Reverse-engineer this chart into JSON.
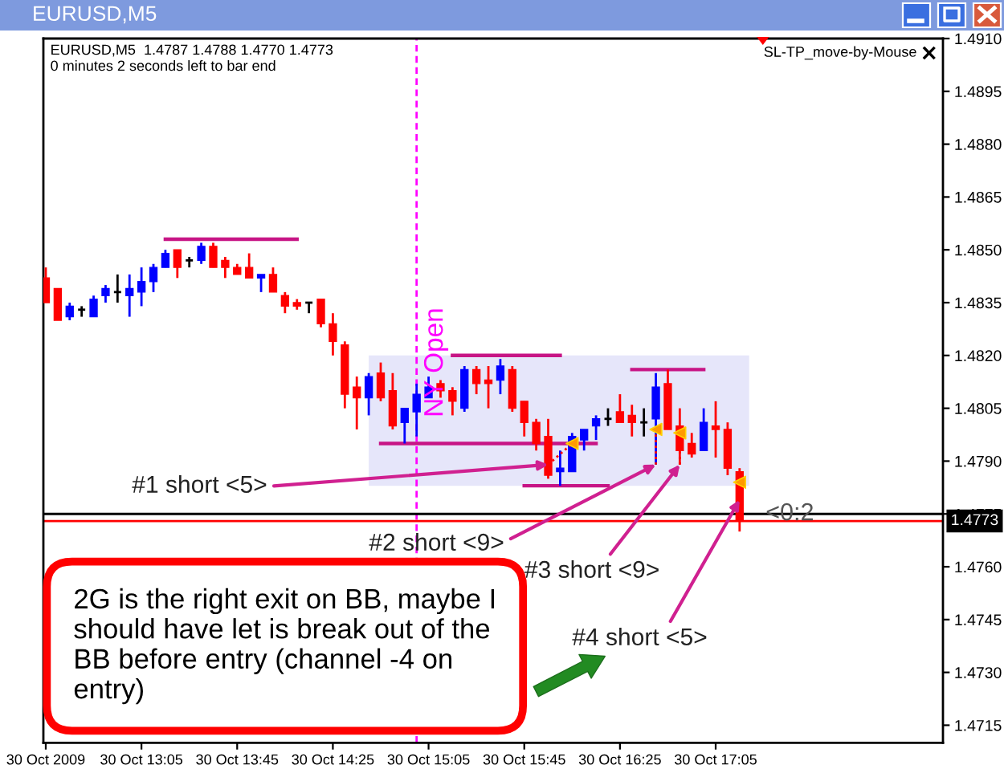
{
  "chart_data": {
    "type": "candlestick",
    "title": "EURUSD,M5",
    "subtitle": "EURUSD,M5  1.4787 1.4788 1.4770 1.4773",
    "x": [
      "2009-10-30T12:25",
      "2009-10-30T12:30",
      "2009-10-30T12:35",
      "2009-10-30T12:40",
      "2009-10-30T12:45",
      "2009-10-30T12:50",
      "2009-10-30T12:55",
      "2009-10-30T13:00",
      "2009-10-30T13:05",
      "2009-10-30T13:10",
      "2009-10-30T13:15",
      "2009-10-30T13:20",
      "2009-10-30T13:25",
      "2009-10-30T13:30",
      "2009-10-30T13:35",
      "2009-10-30T13:40",
      "2009-10-30T13:45",
      "2009-10-30T13:50",
      "2009-10-30T13:55",
      "2009-10-30T14:00",
      "2009-10-30T14:05",
      "2009-10-30T14:10",
      "2009-10-30T14:15",
      "2009-10-30T14:20",
      "2009-10-30T14:25",
      "2009-10-30T14:30",
      "2009-10-30T14:35",
      "2009-10-30T14:40",
      "2009-10-30T14:45",
      "2009-10-30T14:50",
      "2009-10-30T14:55",
      "2009-10-30T15:00",
      "2009-10-30T15:05",
      "2009-10-30T15:10",
      "2009-10-30T15:15",
      "2009-10-30T15:20",
      "2009-10-30T15:25",
      "2009-10-30T15:30",
      "2009-10-30T15:35",
      "2009-10-30T15:40",
      "2009-10-30T15:45",
      "2009-10-30T15:50",
      "2009-10-30T15:55",
      "2009-10-30T16:00",
      "2009-10-30T16:05",
      "2009-10-30T16:10",
      "2009-10-30T16:15",
      "2009-10-30T16:20",
      "2009-10-30T16:25",
      "2009-10-30T16:30",
      "2009-10-30T16:35",
      "2009-10-30T16:40",
      "2009-10-30T16:45",
      "2009-10-30T16:50",
      "2009-10-30T16:55",
      "2009-10-30T17:00",
      "2009-10-30T17:05",
      "2009-10-30T17:10",
      "2009-10-30T17:15"
    ],
    "ohlc": [
      [
        1.4842,
        1.4845,
        1.4835,
        1.4835
      ],
      [
        1.4839,
        1.4839,
        1.483,
        1.483
      ],
      [
        1.4831,
        1.4835,
        1.483,
        1.4834
      ],
      [
        1.4833,
        1.4834,
        1.4831,
        1.4833
      ],
      [
        1.4831,
        1.4837,
        1.4831,
        1.4836
      ],
      [
        1.4837,
        1.484,
        1.4835,
        1.4839
      ],
      [
        1.4838,
        1.4843,
        1.4835,
        1.4838
      ],
      [
        1.4837,
        1.4843,
        1.4831,
        1.4839
      ],
      [
        1.4838,
        1.4845,
        1.4834,
        1.4841
      ],
      [
        1.4841,
        1.4846,
        1.4838,
        1.4845
      ],
      [
        1.4845,
        1.485,
        1.4845,
        1.4849
      ],
      [
        1.485,
        1.485,
        1.4842,
        1.4845
      ],
      [
        1.4847,
        1.4848,
        1.4845,
        1.4847
      ],
      [
        1.4847,
        1.4852,
        1.4846,
        1.4851
      ],
      [
        1.4851,
        1.4852,
        1.4845,
        1.4845
      ],
      [
        1.4847,
        1.4848,
        1.4842,
        1.4845
      ],
      [
        1.4845,
        1.4846,
        1.4843,
        1.4843
      ],
      [
        1.4845,
        1.4849,
        1.4842,
        1.4842
      ],
      [
        1.4842,
        1.4843,
        1.4838,
        1.4843
      ],
      [
        1.4843,
        1.4845,
        1.4838,
        1.4838
      ],
      [
        1.4837,
        1.4838,
        1.4832,
        1.4834
      ],
      [
        1.4835,
        1.4836,
        1.4833,
        1.4834
      ],
      [
        1.4835,
        1.4835,
        1.4832,
        1.4835
      ],
      [
        1.4836,
        1.4836,
        1.4828,
        1.4829
      ],
      [
        1.4829,
        1.4832,
        1.482,
        1.4824
      ],
      [
        1.4823,
        1.4824,
        1.4805,
        1.4809
      ],
      [
        1.4811,
        1.4814,
        1.4799,
        1.4808
      ],
      [
        1.4808,
        1.4815,
        1.4803,
        1.4814
      ],
      [
        1.4815,
        1.4818,
        1.4807,
        1.4808
      ],
      [
        1.481,
        1.4815,
        1.4799,
        1.48
      ],
      [
        1.4801,
        1.4805,
        1.4795,
        1.4805
      ],
      [
        1.4804,
        1.4812,
        1.4797,
        1.4809
      ],
      [
        1.4808,
        1.4814,
        1.4808,
        1.4811
      ],
      [
        1.4812,
        1.4813,
        1.4808,
        1.481
      ],
      [
        1.481,
        1.4811,
        1.4803,
        1.4807
      ],
      [
        1.4805,
        1.4817,
        1.4804,
        1.4816
      ],
      [
        1.4816,
        1.4817,
        1.4809,
        1.4812
      ],
      [
        1.4813,
        1.4817,
        1.4805,
        1.4812
      ],
      [
        1.4813,
        1.4819,
        1.4809,
        1.4817
      ],
      [
        1.4816,
        1.4817,
        1.4804,
        1.4805
      ],
      [
        1.4807,
        1.4807,
        1.4797,
        1.4801
      ],
      [
        1.4801,
        1.4802,
        1.4793,
        1.4795
      ],
      [
        1.4797,
        1.4802,
        1.4785,
        1.4786
      ],
      [
        1.4787,
        1.4793,
        1.4783,
        1.4788
      ],
      [
        1.4787,
        1.4798,
        1.4787,
        1.4797
      ],
      [
        1.4796,
        1.4799,
        1.4793,
        1.4799
      ],
      [
        1.48,
        1.4803,
        1.4796,
        1.4802
      ],
      [
        1.4802,
        1.4805,
        1.48,
        1.4802
      ],
      [
        1.4804,
        1.4809,
        1.4801,
        1.4801
      ],
      [
        1.4803,
        1.4806,
        1.4797,
        1.4801
      ],
      [
        1.4801,
        1.4805,
        1.4797,
        1.4801
      ],
      [
        1.4802,
        1.4815,
        1.4789,
        1.4811
      ],
      [
        1.4812,
        1.4816,
        1.4799,
        1.4799
      ],
      [
        1.48,
        1.4805,
        1.4789,
        1.4793
      ],
      [
        1.4795,
        1.4798,
        1.4791,
        1.4792
      ],
      [
        1.4793,
        1.4805,
        1.4793,
        1.4801
      ],
      [
        1.48,
        1.4807,
        1.4791,
        1.4799
      ],
      [
        1.4799,
        1.4801,
        1.4786,
        1.4788
      ],
      [
        1.4787,
        1.4788,
        1.477,
        1.4773
      ]
    ],
    "colors": [
      "#ff0000",
      "#ff0000",
      "#0000ff",
      "#000000",
      "#0000ff",
      "#0000ff",
      "#000000",
      "#0000ff",
      "#0000ff",
      "#0000ff",
      "#0000ff",
      "#ff0000",
      "#000000",
      "#0000ff",
      "#ff0000",
      "#ff0000",
      "#ff0000",
      "#ff0000",
      "#0000ff",
      "#ff0000",
      "#ff0000",
      "#ff0000",
      "#000000",
      "#ff0000",
      "#ff0000",
      "#ff0000",
      "#ff0000",
      "#0000ff",
      "#ff0000",
      "#ff0000",
      "#0000ff",
      "#0000ff",
      "#0000ff",
      "#ff0000",
      "#ff0000",
      "#0000ff",
      "#ff0000",
      "#ff0000",
      "#0000ff",
      "#ff0000",
      "#ff0000",
      "#ff0000",
      "#ff0000",
      "#0000ff",
      "#0000ff",
      "#0000ff",
      "#0000ff",
      "#000000",
      "#ff0000",
      "#ff0000",
      "#000000",
      "#0000ff",
      "#ff0000",
      "#ff0000",
      "#ff0000",
      "#0000ff",
      "#ff0000",
      "#ff0000",
      "#ff0000"
    ],
    "xlim": [
      "2009-10-30T12:24",
      "2009-10-30T18:40"
    ],
    "xticks": [
      {
        "value": "2009-10-30T12:25",
        "label": "30 Oct 2009"
      },
      {
        "value": "2009-10-30T13:05",
        "label": "30 Oct 13:05"
      },
      {
        "value": "2009-10-30T13:45",
        "label": "30 Oct 13:45"
      },
      {
        "value": "2009-10-30T14:25",
        "label": "30 Oct 14:25"
      },
      {
        "value": "2009-10-30T15:05",
        "label": "30 Oct 15:05"
      },
      {
        "value": "2009-10-30T15:45",
        "label": "30 Oct 15:45"
      },
      {
        "value": "2009-10-30T16:25",
        "label": "30 Oct 16:25"
      },
      {
        "value": "2009-10-30T17:05",
        "label": "30 Oct 17:05"
      }
    ],
    "ylim": [
      1.471,
      1.491
    ],
    "yticks": [
      1.4715,
      {
        "value": 1.473,
        "label": "1.4730"
      },
      1.4745,
      {
        "value": 1.476,
        "label": "1.4760"
      },
      1.4775,
      {
        "value": 1.479,
        "label": "1.4790"
      },
      1.4805,
      {
        "value": 1.482,
        "label": "1.4820"
      },
      1.4835,
      {
        "value": 1.485,
        "label": "1.4850"
      },
      1.4865,
      {
        "value": 1.488,
        "label": "1.4880"
      },
      1.4895,
      {
        "value": 1.491,
        "label": "1.4910"
      }
    ],
    "series": [
      {
        "type": "line",
        "x": [
          "2009-10-30T14:40",
          "2009-10-30T17:19"
        ],
        "values": [
          null,
          null
        ],
        "lower": [
          1.4783,
          1.4783
        ],
        "upper": [
          1.482,
          1.482
        ],
        "color": "#e6e6fa"
      },
      {
        "type": "line",
        "x": [
          "2009-10-30T13:15",
          "2009-10-30T14:10"
        ],
        "values": [
          1.4853,
          1.4853
        ],
        "color": "#c71585",
        "line_style": "solid"
      },
      {
        "type": "line",
        "x": [
          "2009-10-30T15:15",
          "2009-10-30T16:00"
        ],
        "values": [
          1.482,
          1.482
        ],
        "color": "#c71585",
        "line_style": "solid"
      },
      {
        "type": "line",
        "x": [
          "2009-10-30T16:30",
          "2009-10-30T17:00"
        ],
        "values": [
          1.4816,
          1.4816
        ],
        "color": "#c71585",
        "line_style": "solid"
      },
      {
        "type": "line",
        "x": [
          "2009-10-30T14:45",
          "2009-10-30T16:15"
        ],
        "values": [
          1.4795,
          1.4795
        ],
        "color": "#c71585",
        "line_style": "solid"
      },
      {
        "type": "line",
        "x": [
          "2009-10-30T15:45",
          "2009-10-30T16:20"
        ],
        "values": [
          1.4783,
          1.4783
        ],
        "color": "#c71585",
        "line_style": "solid"
      },
      {
        "type": "line",
        "x": [
          "2009-10-30T15:55",
          "2009-10-30T16:05"
        ],
        "values": [
          1.4789,
          1.4795
        ],
        "color": "#ff0000",
        "line_style": "dotted"
      },
      {
        "type": "line",
        "x": [
          "2009-10-30T16:40",
          "2009-10-30T16:40"
        ],
        "values": [
          1.4789,
          1.4799
        ],
        "color": "#ff0000",
        "line_style": "dotted"
      },
      {
        "type": "line",
        "x": [
          "2009-10-30T16:50",
          "2009-10-30T16:50"
        ],
        "values": [
          1.4789,
          1.4798
        ],
        "color": "#ff0000",
        "line_style": "dotted"
      },
      {
        "type": "scatter",
        "x": [
          "2009-10-30T16:05",
          "2009-10-30T16:40",
          "2009-10-30T16:50",
          "2009-10-30T17:15"
        ],
        "values": [
          1.4795,
          1.4799,
          1.4798,
          1.4784
        ],
        "color": "#ff9900",
        "marker": "triangle"
      }
    ],
    "ref_lines": [
      {
        "axis": "x",
        "value": "2009-10-30T15:00",
        "label": "NY Open",
        "color": "#ff00ff",
        "line_style": "dashed"
      },
      {
        "axis": "y",
        "value": 1.4775,
        "color": "#000000"
      },
      {
        "axis": "y",
        "value": 1.4773,
        "label": "1.4773",
        "color": "#ff0000"
      }
    ],
    "annotations": [
      "0 minutes 2 seconds left to bar end",
      "SL-TP_move-by-Mouse",
      "2G is the right exit on BB, maybe I\nshould have let is break out of the\nBB before entry (channel -4 on\nentry)",
      {
        "text": "#1 short <5>",
        "x": "2009-10-30T15:55",
        "y": 1.4789
      },
      {
        "text": "#2 short <9>",
        "x": "2009-10-30T16:40",
        "y": 1.4789
      },
      {
        "text": "#3 short <9>",
        "x": "2009-10-30T16:50",
        "y": 1.4789
      },
      {
        "text": "#4 short <5>",
        "x": "2009-10-30T17:15",
        "y": 1.4779
      },
      {
        "text": "<0:2",
        "x": "2009-10-30T17:36",
        "y": 1.4775
      }
    ]
  }
}
